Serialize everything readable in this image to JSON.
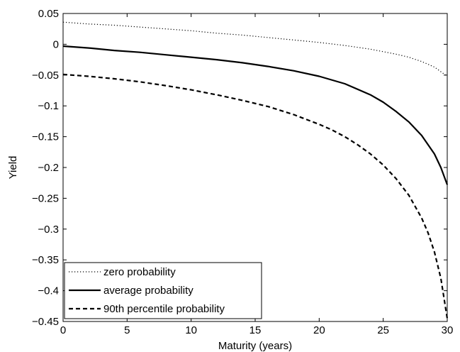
{
  "chart_data": {
    "type": "line",
    "title": "",
    "xlabel": "Maturity (years)",
    "ylabel": "Yield",
    "xlim": [
      0,
      30
    ],
    "ylim": [
      -0.45,
      0.05
    ],
    "xticks": [
      0,
      5,
      10,
      15,
      20,
      25,
      30
    ],
    "xtick_labels": [
      "0",
      "5",
      "10",
      "15",
      "20",
      "25",
      "30"
    ],
    "yticks": [
      0.05,
      0,
      -0.05,
      -0.1,
      -0.15,
      -0.2,
      -0.25,
      -0.3,
      -0.35,
      -0.4,
      -0.45
    ],
    "ytick_labels": [
      "0.05",
      "0",
      "−0.05",
      "−0.1",
      "−0.15",
      "−0.2",
      "−0.25",
      "−0.3",
      "−0.35",
      "−0.4",
      "−0.45"
    ],
    "grid": false,
    "legend_position": "bottom-left",
    "series": [
      {
        "name": "zero probability",
        "style": "dotted",
        "color": "#000000",
        "x": [
          0,
          2,
          4,
          6,
          8,
          10,
          12,
          14,
          16,
          18,
          20,
          22,
          24,
          26,
          27,
          28,
          29,
          30
        ],
        "y": [
          0.036,
          0.033,
          0.031,
          0.028,
          0.025,
          0.022,
          0.018,
          0.015,
          0.011,
          0.007,
          0.003,
          -0.002,
          -0.008,
          -0.016,
          -0.021,
          -0.028,
          -0.037,
          -0.052
        ]
      },
      {
        "name": "average probability",
        "style": "solid",
        "color": "#000000",
        "x": [
          0,
          2,
          4,
          6,
          8,
          10,
          12,
          14,
          16,
          18,
          20,
          22,
          24,
          25,
          26,
          27,
          28,
          29,
          29.5,
          30
        ],
        "y": [
          -0.003,
          -0.006,
          -0.01,
          -0.013,
          -0.017,
          -0.021,
          -0.025,
          -0.03,
          -0.036,
          -0.043,
          -0.052,
          -0.064,
          -0.082,
          -0.094,
          -0.109,
          -0.126,
          -0.148,
          -0.178,
          -0.2,
          -0.228
        ]
      },
      {
        "name": "90th percentile probability",
        "style": "dashed",
        "color": "#000000",
        "x": [
          0,
          2,
          4,
          6,
          8,
          10,
          12,
          14,
          16,
          18,
          20,
          21,
          22,
          23,
          24,
          25,
          26,
          27,
          28,
          28.5,
          29,
          29.5,
          30
        ],
        "y": [
          -0.049,
          -0.052,
          -0.056,
          -0.061,
          -0.067,
          -0.074,
          -0.082,
          -0.091,
          -0.101,
          -0.114,
          -0.13,
          -0.139,
          -0.15,
          -0.163,
          -0.178,
          -0.196,
          -0.218,
          -0.245,
          -0.282,
          -0.306,
          -0.337,
          -0.38,
          -0.445
        ]
      }
    ]
  }
}
